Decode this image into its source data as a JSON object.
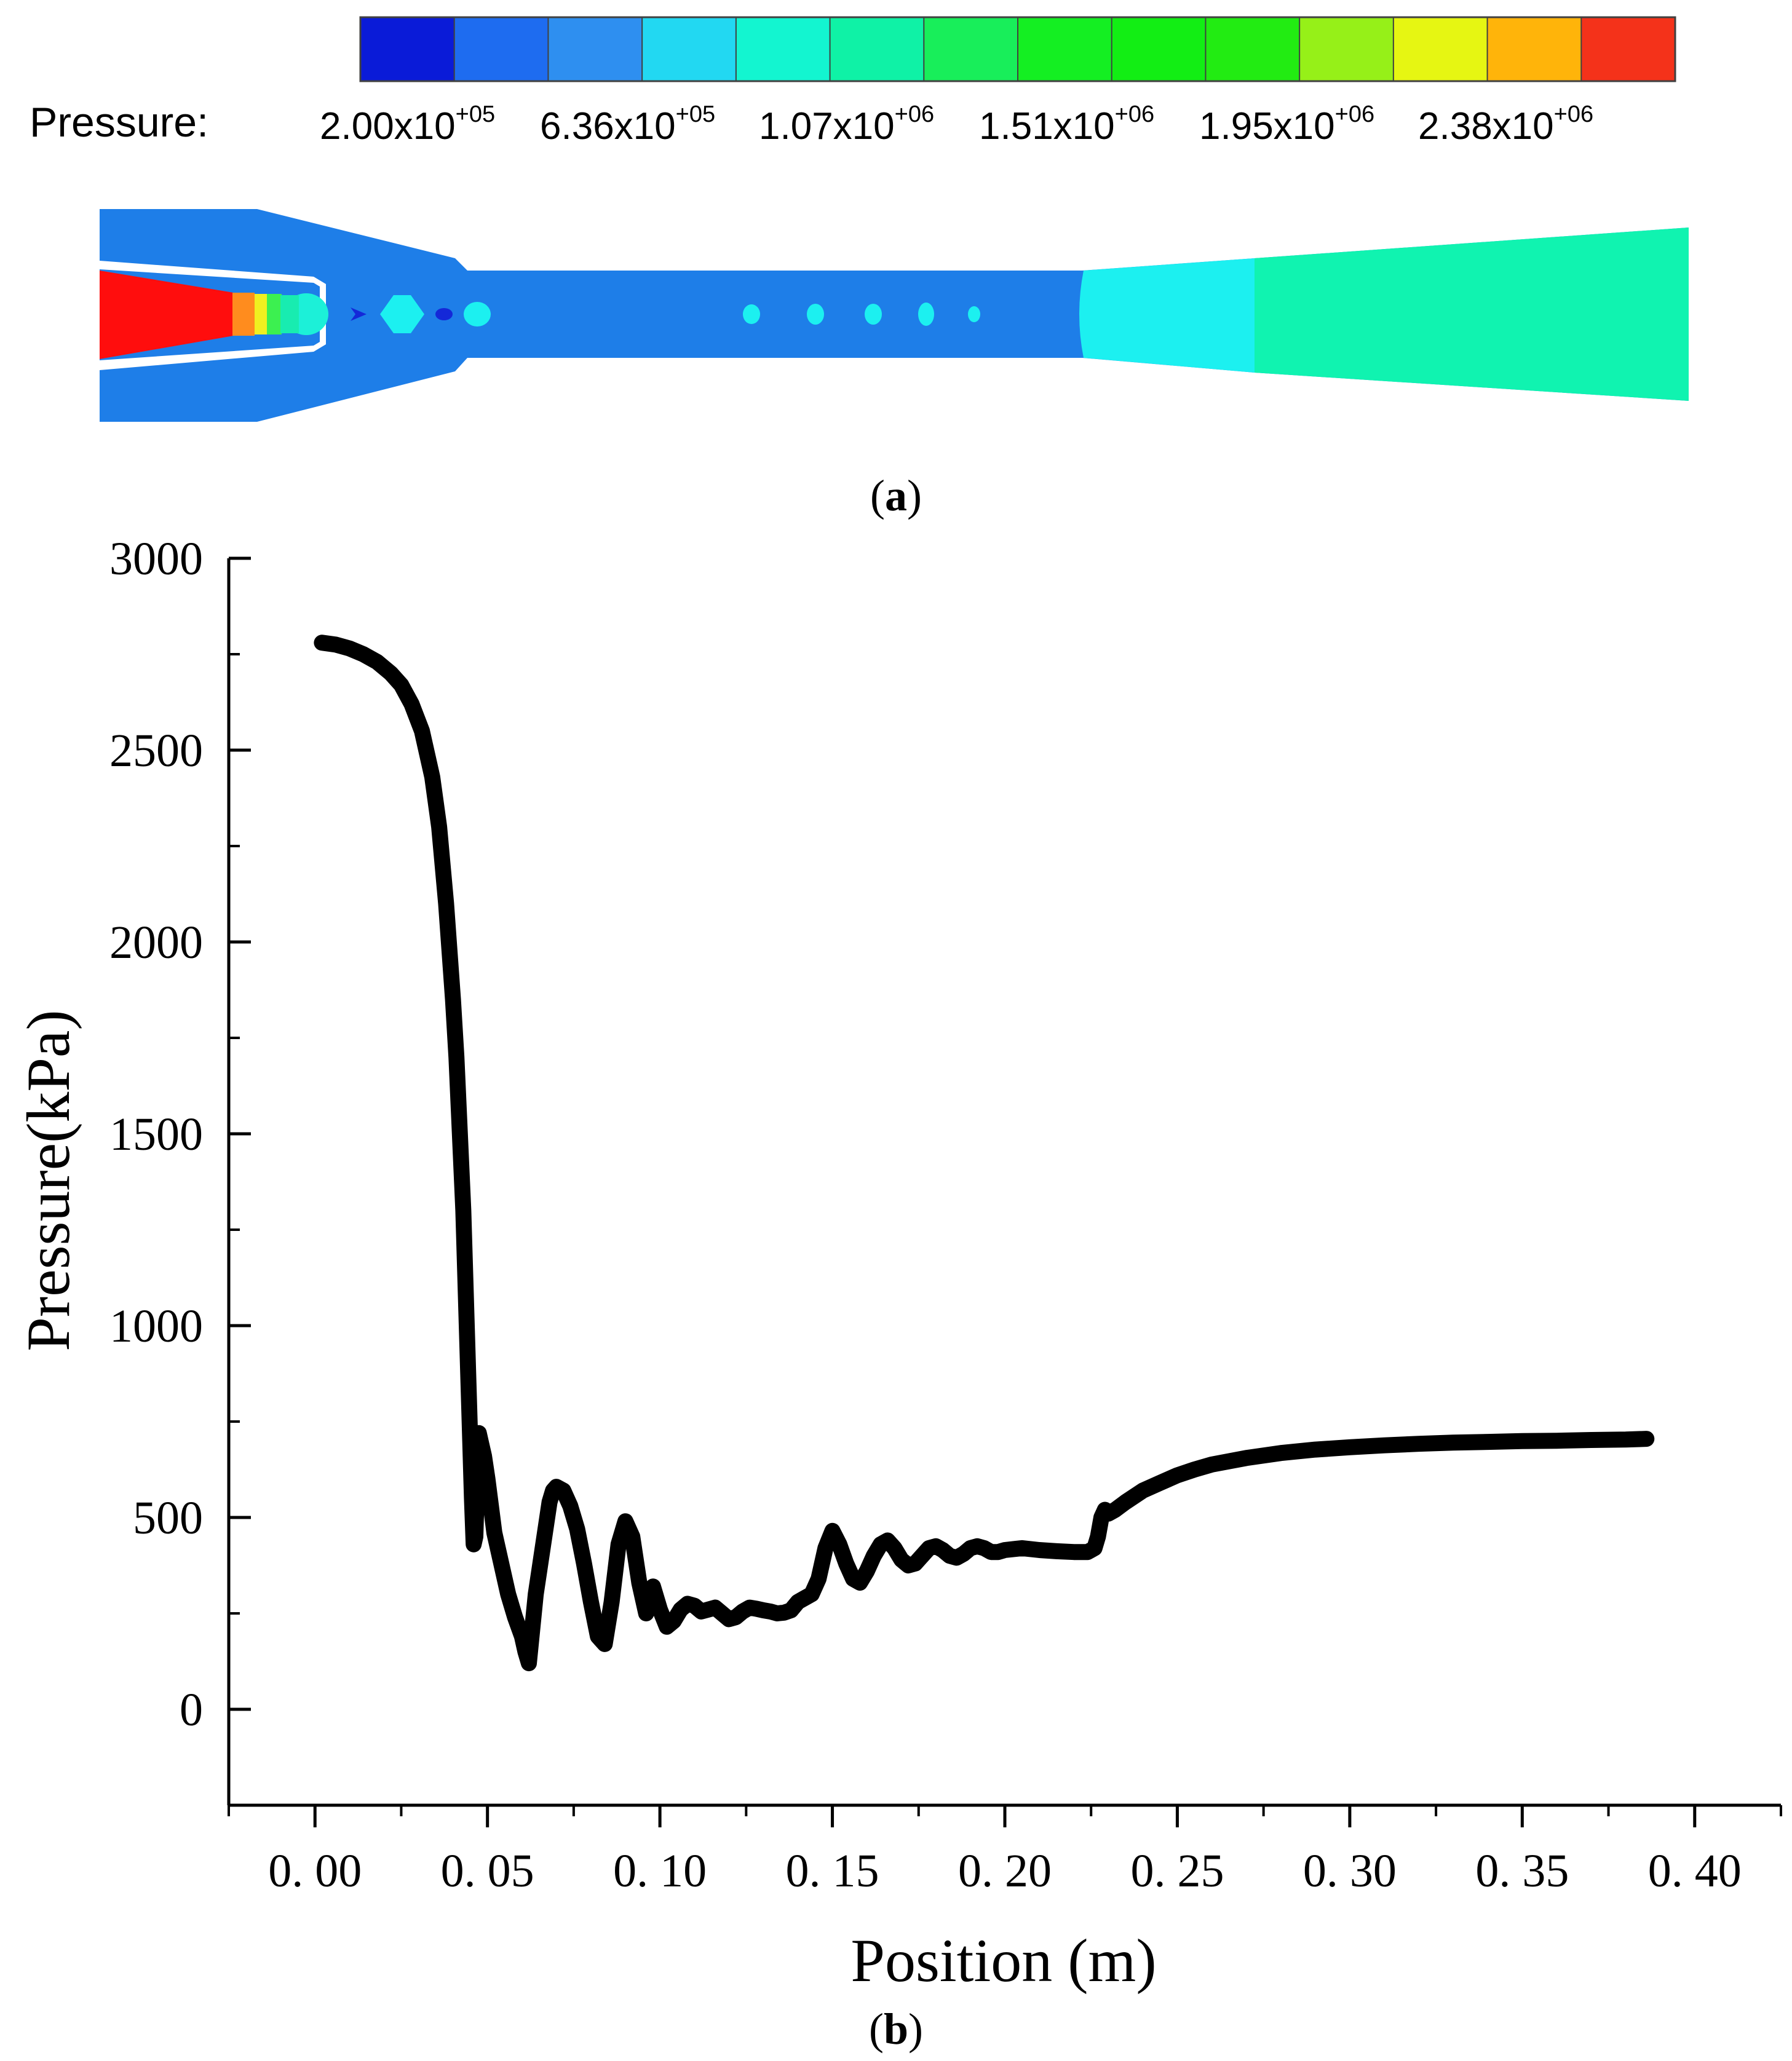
{
  "panel_a": {
    "caption": "a",
    "colorbar": {
      "label": "Pressure:",
      "ticks": [
        {
          "mantissa": "2.00x10",
          "exponent": "+05"
        },
        {
          "mantissa": "6.36x10",
          "exponent": "+05"
        },
        {
          "mantissa": "1.07x10",
          "exponent": "+06"
        },
        {
          "mantissa": "1.51x10",
          "exponent": "+06"
        },
        {
          "mantissa": "1.95x10",
          "exponent": "+06"
        },
        {
          "mantissa": "2.38x10",
          "exponent": "+06"
        }
      ],
      "colors": [
        "#0a1bd8",
        "#1e6cf0",
        "#2e8ff0",
        "#22d8f2",
        "#13f5d0",
        "#0ff2a6",
        "#18ee5a",
        "#14ef22",
        "#12ee14",
        "#22ec12",
        "#96f018",
        "#e6f612",
        "#ffb40a",
        "#f4321a"
      ]
    },
    "contour_colors": {
      "low": "#1e7ee8",
      "mid_cyan": "#1cf0f0",
      "aqua": "#10f3b0",
      "high": "#ff0d0d",
      "orange": "#ff8c1e",
      "yellow": "#f0f020",
      "deep_blue": "#1428d8"
    }
  },
  "panel_b": {
    "caption": "b",
    "chart_data": {
      "type": "scatter",
      "title": "",
      "xlabel": "Position (m)",
      "ylabel": "Pressure(kPa)",
      "xlim": [
        -0.025,
        0.425
      ],
      "ylim": [
        -250,
        3000
      ],
      "xticks": [
        0.0,
        0.05,
        0.1,
        0.15,
        0.2,
        0.25,
        0.3,
        0.35,
        0.4
      ],
      "xtick_labels": [
        "0. 00",
        "0. 05",
        "0. 10",
        "0. 15",
        "0. 20",
        "0. 25",
        "0. 30",
        "0. 35",
        "0. 40"
      ],
      "yticks": [
        0,
        500,
        1000,
        1500,
        2000,
        2500,
        3000
      ],
      "ytick_labels": [
        "0",
        "500",
        "1000",
        "1500",
        "2000",
        "2500",
        "3000"
      ],
      "grid": false,
      "series": [
        {
          "x": [
            0.002,
            0.006,
            0.01,
            0.014,
            0.018,
            0.022,
            0.025,
            0.028,
            0.031,
            0.034,
            0.036,
            0.038,
            0.04,
            0.041,
            0.042,
            0.043,
            0.0435,
            0.044,
            0.0445,
            0.045,
            0.0455,
            0.046,
            0.0465,
            0.047,
            0.0475,
            0.048,
            0.049,
            0.05,
            0.051,
            0.052,
            0.054,
            0.056,
            0.058,
            0.06,
            0.061,
            0.062,
            0.063,
            0.064,
            0.065,
            0.066,
            0.067,
            0.068,
            0.069,
            0.07,
            0.072,
            0.074,
            0.076,
            0.078,
            0.08,
            0.082,
            0.084,
            0.086,
            0.088,
            0.09,
            0.092,
            0.094,
            0.096,
            0.097,
            0.098,
            0.1,
            0.102,
            0.104,
            0.106,
            0.108,
            0.11,
            0.112,
            0.114,
            0.116,
            0.118,
            0.12,
            0.122,
            0.124,
            0.126,
            0.128,
            0.13,
            0.132,
            0.134,
            0.136,
            0.138,
            0.14,
            0.142,
            0.144,
            0.146,
            0.148,
            0.15,
            0.152,
            0.154,
            0.156,
            0.158,
            0.16,
            0.162,
            0.164,
            0.166,
            0.168,
            0.17,
            0.172,
            0.174,
            0.176,
            0.178,
            0.18,
            0.182,
            0.184,
            0.186,
            0.188,
            0.19,
            0.192,
            0.194,
            0.196,
            0.198,
            0.2,
            0.205,
            0.21,
            0.215,
            0.22,
            0.224,
            0.226,
            0.227,
            0.228,
            0.229,
            0.23,
            0.232,
            0.235,
            0.24,
            0.245,
            0.25,
            0.255,
            0.26,
            0.27,
            0.28,
            0.29,
            0.3,
            0.31,
            0.32,
            0.33,
            0.34,
            0.35,
            0.36,
            0.37,
            0.38,
            0.386
          ],
          "y": [
            2780,
            2775,
            2765,
            2750,
            2730,
            2700,
            2670,
            2620,
            2550,
            2430,
            2300,
            2100,
            1850,
            1700,
            1500,
            1300,
            1150,
            1000,
            850,
            700,
            550,
            430,
            450,
            600,
            720,
            700,
            660,
            600,
            530,
            460,
            380,
            300,
            240,
            190,
            150,
            120,
            210,
            300,
            360,
            420,
            480,
            540,
            570,
            580,
            570,
            530,
            470,
            380,
            280,
            190,
            170,
            280,
            430,
            490,
            450,
            330,
            250,
            280,
            320,
            260,
            215,
            230,
            260,
            275,
            270,
            255,
            260,
            265,
            250,
            235,
            240,
            255,
            265,
            262,
            258,
            255,
            250,
            252,
            258,
            280,
            290,
            300,
            340,
            420,
            465,
            430,
            380,
            340,
            330,
            360,
            400,
            430,
            440,
            420,
            390,
            375,
            380,
            400,
            420,
            425,
            415,
            400,
            395,
            405,
            420,
            425,
            420,
            410,
            410,
            415,
            420,
            415,
            412,
            410,
            410,
            420,
            450,
            500,
            520,
            510,
            520,
            540,
            570,
            590,
            610,
            625,
            638,
            655,
            668,
            677,
            683,
            688,
            692,
            695,
            697,
            699,
            700,
            702,
            703,
            705
          ]
        }
      ]
    }
  }
}
